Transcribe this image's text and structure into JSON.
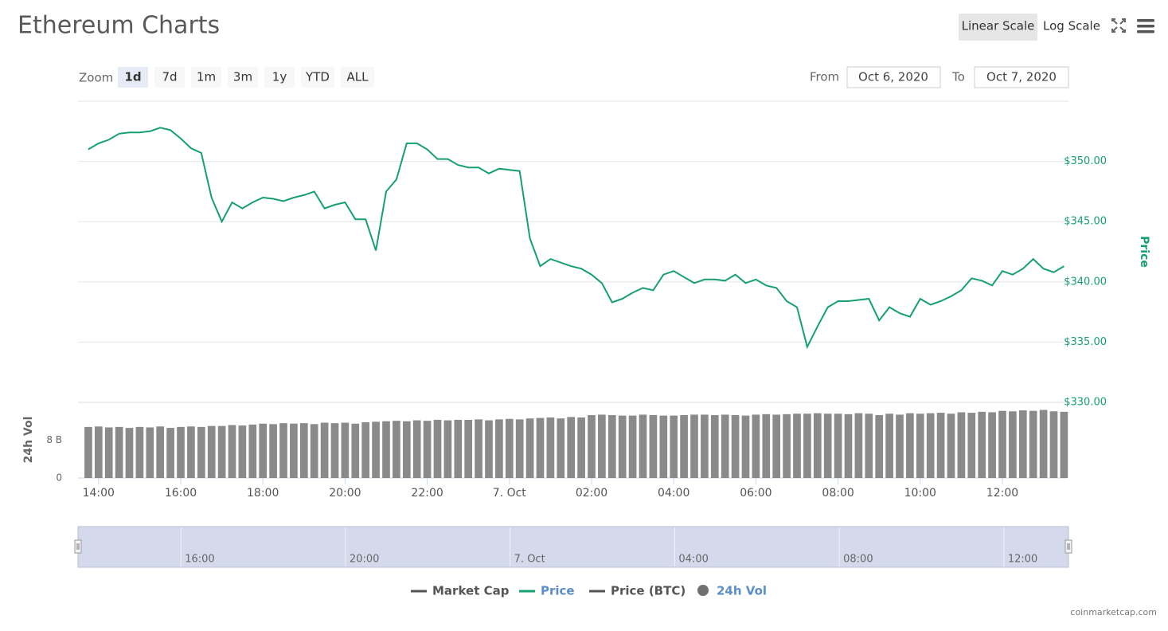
{
  "header": {
    "title": "Ethereum Charts",
    "scale_buttons": [
      "Linear Scale",
      "Log Scale"
    ],
    "active_scale_index": 0
  },
  "controls": {
    "zoom_label": "Zoom",
    "zoom_options": [
      "1d",
      "7d",
      "1m",
      "3m",
      "1y",
      "YTD",
      "ALL"
    ],
    "selected_zoom_index": 0,
    "from_label": "From",
    "from_date": "Oct 6, 2020",
    "to_label": "To",
    "to_date": "Oct 7, 2020"
  },
  "chart_data": {
    "type": "line",
    "ylabel": "Price",
    "y2label": "24h Vol",
    "x": [
      13.75,
      14,
      14.25,
      14.5,
      14.75,
      15,
      15.25,
      15.5,
      15.75,
      16,
      16.25,
      16.5,
      16.75,
      17,
      17.25,
      17.5,
      17.75,
      18,
      18.25,
      18.5,
      18.75,
      19,
      19.25,
      19.5,
      19.75,
      20,
      20.25,
      20.5,
      20.75,
      21,
      21.25,
      21.5,
      21.75,
      22,
      22.25,
      22.5,
      22.75,
      23,
      23.25,
      23.5,
      23.75,
      24,
      24.25,
      24.5,
      24.75,
      25,
      25.25,
      25.5,
      25.75,
      26,
      26.25,
      26.5,
      26.75,
      27,
      27.25,
      27.5,
      27.75,
      28,
      28.25,
      28.5,
      28.75,
      29,
      29.25,
      29.5,
      29.75,
      30,
      30.25,
      30.5,
      30.75,
      31,
      31.25,
      31.5,
      31.75,
      32,
      32.25,
      32.5,
      32.75,
      33,
      33.25,
      33.5,
      33.75,
      34,
      34.25,
      34.5,
      34.75,
      35,
      35.25,
      35.5,
      35.75,
      36,
      36.25,
      36.5,
      36.75,
      37,
      37.25,
      37.5
    ],
    "xlim": [
      13.5,
      37.57
    ],
    "xticks": [
      {
        "value": 14,
        "label": "14:00"
      },
      {
        "value": 16,
        "label": "16:00"
      },
      {
        "value": 18,
        "label": "18:00"
      },
      {
        "value": 20,
        "label": "20:00"
      },
      {
        "value": 22,
        "label": "22:00"
      },
      {
        "value": 24,
        "label": "7. Oct"
      },
      {
        "value": 26,
        "label": "02:00"
      },
      {
        "value": 28,
        "label": "04:00"
      },
      {
        "value": 30,
        "label": "06:00"
      },
      {
        "value": 32,
        "label": "08:00"
      },
      {
        "value": 34,
        "label": "10:00"
      },
      {
        "value": 36,
        "label": "12:00"
      }
    ],
    "navigator_xticks": [
      {
        "value": 16,
        "label": "16:00"
      },
      {
        "value": 20,
        "label": "20:00"
      },
      {
        "value": 24,
        "label": "7. Oct"
      },
      {
        "value": 28,
        "label": "04:00"
      },
      {
        "value": 32,
        "label": "08:00"
      },
      {
        "value": 36,
        "label": "12:00"
      }
    ],
    "ylim": [
      330,
      355
    ],
    "yticks": [
      {
        "value": 330,
        "label": "$330.00"
      },
      {
        "value": 335,
        "label": "$335.00"
      },
      {
        "value": 340,
        "label": "$340.00"
      },
      {
        "value": 345,
        "label": "$345.00"
      },
      {
        "value": 350,
        "label": "$350.00"
      }
    ],
    "y2lim": [
      0,
      16
    ],
    "y2ticks": [
      0,
      {
        "value": 8,
        "label": "8 B"
      }
    ],
    "grid": true,
    "series": [
      {
        "name": "Price",
        "color": "#16a070",
        "values": [
          351.0,
          351.5,
          351.8,
          352.3,
          352.4,
          352.4,
          352.5,
          352.8,
          352.6,
          351.9,
          351.1,
          350.7,
          347.0,
          345.0,
          346.6,
          346.1,
          346.6,
          347.0,
          346.9,
          346.7,
          347.0,
          347.2,
          347.5,
          346.1,
          346.4,
          346.6,
          345.2,
          345.2,
          342.6,
          347.5,
          348.5,
          351.5,
          351.5,
          351.0,
          350.2,
          350.2,
          349.7,
          349.5,
          349.5,
          349.0,
          349.4,
          349.3,
          349.2,
          343.6,
          341.3,
          341.9,
          341.6,
          341.3,
          341.1,
          340.6,
          339.9,
          338.3,
          338.6,
          339.1,
          339.5,
          339.3,
          340.6,
          340.9,
          340.4,
          339.9,
          340.2,
          340.2,
          340.1,
          340.6,
          339.9,
          340.2,
          339.7,
          339.5,
          338.4,
          337.9,
          334.6,
          336.3,
          337.9,
          338.4,
          338.4,
          338.5,
          338.6,
          336.8,
          337.9,
          337.4,
          337.1,
          338.6,
          338.1,
          338.4,
          338.8,
          339.3,
          340.3,
          340.1,
          339.7,
          340.9,
          340.6,
          341.1,
          341.9,
          341.1,
          340.8,
          341.3
        ]
      },
      {
        "name": "24h Vol",
        "color": "#8a8a8a",
        "axis": "y2",
        "values": [
          10.8,
          10.9,
          10.7,
          10.8,
          10.6,
          10.8,
          10.7,
          10.9,
          10.6,
          10.8,
          10.9,
          10.8,
          11.0,
          11.0,
          11.2,
          11.1,
          11.3,
          11.5,
          11.4,
          11.6,
          11.5,
          11.6,
          11.4,
          11.7,
          11.6,
          11.7,
          11.5,
          11.8,
          11.9,
          12.0,
          12.1,
          12.0,
          12.2,
          12.1,
          12.3,
          12.2,
          12.3,
          12.3,
          12.4,
          12.2,
          12.4,
          12.5,
          12.4,
          12.6,
          12.7,
          12.8,
          12.6,
          12.9,
          12.8,
          13.3,
          13.4,
          13.3,
          13.2,
          13.2,
          13.4,
          13.3,
          13.2,
          13.2,
          13.3,
          13.4,
          13.4,
          13.3,
          13.4,
          13.3,
          13.2,
          13.4,
          13.5,
          13.4,
          13.5,
          13.6,
          13.6,
          13.7,
          13.6,
          13.6,
          13.5,
          13.7,
          13.6,
          13.3,
          13.6,
          13.4,
          13.7,
          13.6,
          13.7,
          13.8,
          13.6,
          13.9,
          13.8,
          14.0,
          13.9,
          14.2,
          14.1,
          14.3,
          14.2,
          14.4,
          14.1,
          14.0
        ]
      }
    ],
    "legend": [
      {
        "name": "Market Cap",
        "color": "#555555",
        "symbol": "line",
        "active": false
      },
      {
        "name": "Price",
        "color": "#16a070",
        "symbol": "line",
        "active": true
      },
      {
        "name": "Price (BTC)",
        "color": "#555555",
        "symbol": "line",
        "active": false
      },
      {
        "name": "24h Vol",
        "color": "#707070",
        "symbol": "circle",
        "active": true
      }
    ]
  },
  "footer": {
    "credit": "coinmarketcap.com"
  }
}
